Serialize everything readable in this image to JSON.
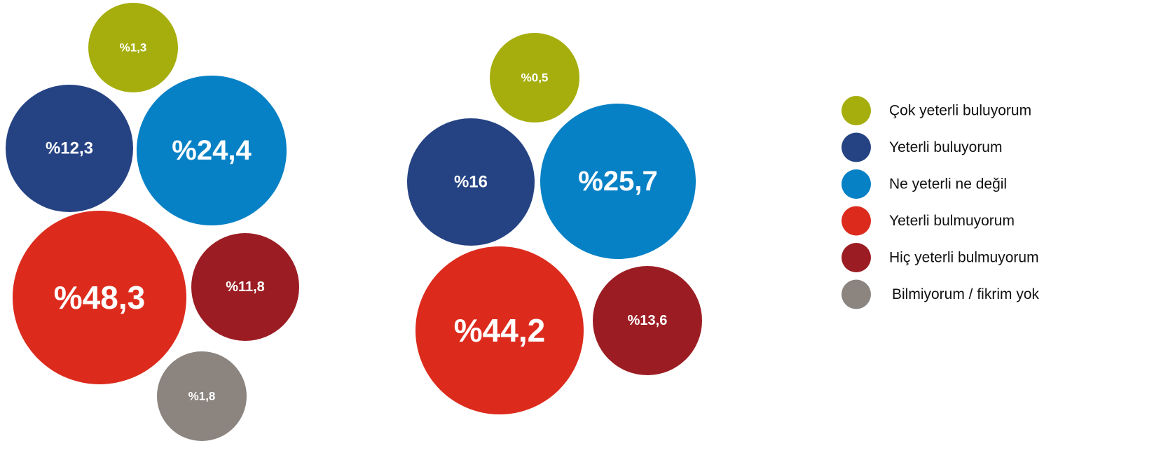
{
  "chart_data": {
    "type": "bubble",
    "legend_position": "right",
    "categories": [
      {
        "name": "Çok yeterli buluyorum",
        "color": "#a5ae0c"
      },
      {
        "name": "Yeterli buluyorum",
        "color": "#254383"
      },
      {
        "name": "Ne yeterli ne değil",
        "color": "#0781c5"
      },
      {
        "name": "Yeterli bulmuyorum",
        "color": "#dc2b1d"
      },
      {
        "name": "Hiç yeterli bulmuyorum",
        "color": "#9b1d23"
      },
      {
        "name": "Bilmiyorum / fikrim yok",
        "color": "#8b847f"
      }
    ],
    "groups": [
      {
        "bubbles": [
          {
            "category": 0,
            "value": 1.3,
            "label": "%1,3"
          },
          {
            "category": 1,
            "value": 12.3,
            "label": "%12,3"
          },
          {
            "category": 2,
            "value": 24.4,
            "label": "%24,4"
          },
          {
            "category": 3,
            "value": 48.3,
            "label": "%48,3"
          },
          {
            "category": 4,
            "value": 11.8,
            "label": "%11,8"
          },
          {
            "category": 5,
            "value": 1.8,
            "label": "%1,8"
          }
        ]
      },
      {
        "bubbles": [
          {
            "category": 0,
            "value": 0.5,
            "label": "%0,5"
          },
          {
            "category": 1,
            "value": 16,
            "label": "%16"
          },
          {
            "category": 2,
            "value": 25.7,
            "label": "%25,7"
          },
          {
            "category": 3,
            "value": 44.2,
            "label": "%44,2"
          },
          {
            "category": 4,
            "value": 13.6,
            "label": "%13,6"
          }
        ]
      }
    ]
  }
}
